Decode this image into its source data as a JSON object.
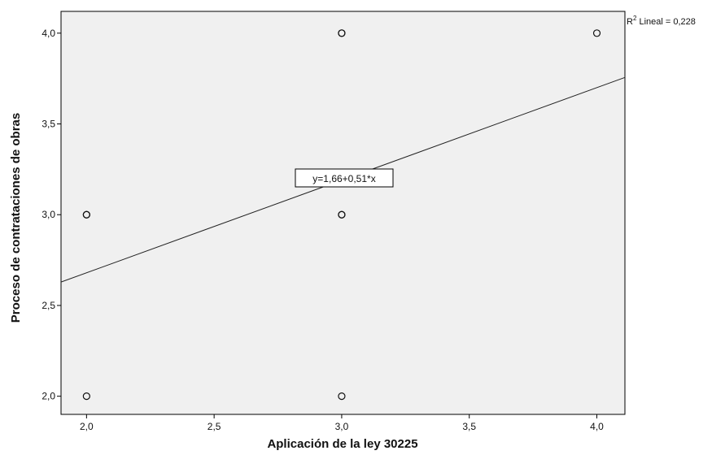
{
  "chart_data": {
    "type": "scatter",
    "xlabel": "Aplicación de la ley 30225",
    "ylabel": "Proceso de contrataciones de obras",
    "xlim": [
      1.9,
      4.11
    ],
    "ylim": [
      1.9,
      4.12
    ],
    "x_ticks": [
      2.0,
      2.5,
      3.0,
      3.5,
      4.0
    ],
    "x_tick_labels": [
      "2,0",
      "2,5",
      "3,0",
      "3,5",
      "4,0"
    ],
    "y_ticks": [
      2.0,
      2.5,
      3.0,
      3.5,
      4.0
    ],
    "y_tick_labels": [
      "2,0",
      "2,5",
      "3,0",
      "3,5",
      "4,0"
    ],
    "points": [
      {
        "x": 2,
        "y": 2
      },
      {
        "x": 2,
        "y": 3
      },
      {
        "x": 2,
        "y": 3
      },
      {
        "x": 3,
        "y": 2
      },
      {
        "x": 3,
        "y": 3
      },
      {
        "x": 3,
        "y": 3
      },
      {
        "x": 3,
        "y": 4
      },
      {
        "x": 3,
        "y": 4
      },
      {
        "x": 4,
        "y": 4
      }
    ],
    "fit_line": {
      "intercept": 1.66,
      "slope": 0.51
    },
    "fit_equation_label": "y=1,66+0,51*x",
    "r2_prefix": "R",
    "r2_superscript": "2",
    "r2_label": " Lineal = 0,228",
    "plot_background": "#f0f0f0",
    "grid": false
  }
}
